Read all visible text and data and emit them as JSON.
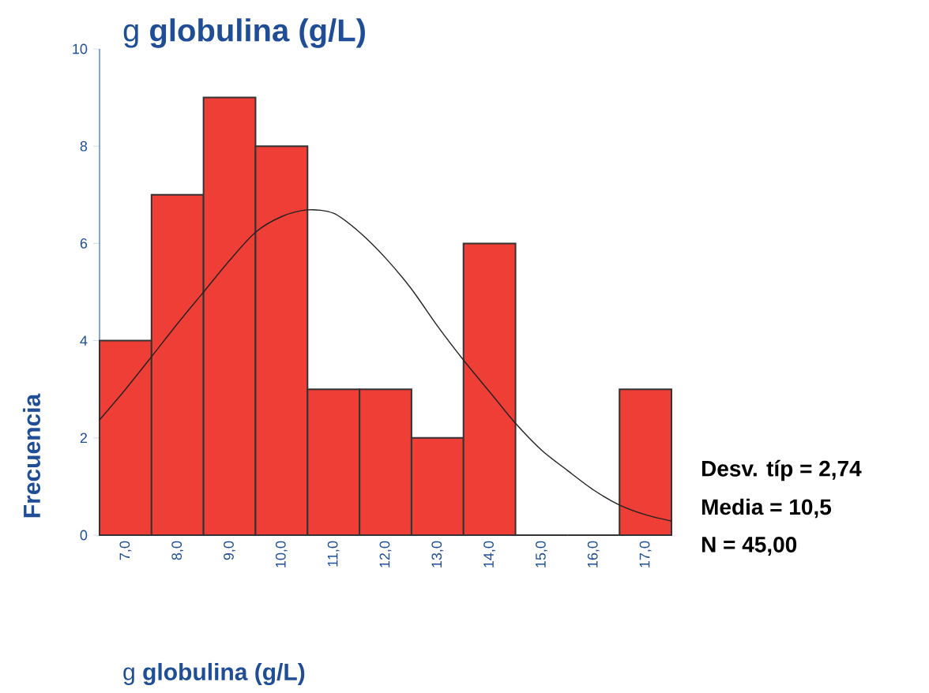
{
  "chart_data": {
    "type": "histogram",
    "title": "g **globulina (g/L)**",
    "xlabel": "g **globulina (g/L)**",
    "ylabel": "Frecuencia",
    "series": [
      {
        "color": "#ef3e36",
        "bins": [
          6.5,
          7.5,
          8.5,
          9.5,
          10.5,
          11.5,
          12.5,
          13.5,
          14.5,
          15.5,
          16.5,
          17.5
        ],
        "values": [
          4,
          7,
          9,
          8,
          3,
          3,
          2,
          6,
          0,
          0,
          3
        ]
      },
      {
        "type": "line",
        "color": "#222222",
        "x": [
          6.5,
          7,
          7.5,
          8,
          8.5,
          9,
          9.5,
          10,
          10.5,
          11,
          11.5,
          12,
          12.5,
          13,
          13.5,
          14,
          14.5,
          15,
          15.5,
          16,
          16.5,
          17,
          17.5
        ],
        "values": [
          2.37,
          3.0,
          3.67,
          4.35,
          5.0,
          5.65,
          6.23,
          6.55,
          6.69,
          6.62,
          6.23,
          5.7,
          5.06,
          4.3,
          3.6,
          2.95,
          2.3,
          1.75,
          1.33,
          0.93,
          0.62,
          0.42,
          0.29
        ]
      }
    ],
    "xlim": [
      6.5,
      17.5
    ],
    "ylim": [
      0,
      10
    ],
    "xticks": [
      {
        "value": 7,
        "label": "7,0"
      },
      {
        "value": 8,
        "label": "8,0"
      },
      {
        "value": 9,
        "label": "9,0"
      },
      {
        "value": 10,
        "label": "10,0"
      },
      {
        "value": 11,
        "label": "11,0"
      },
      {
        "value": 12,
        "label": "12,0"
      },
      {
        "value": 13,
        "label": "13,0"
      },
      {
        "value": 14,
        "label": "14,0"
      },
      {
        "value": 15,
        "label": "15,0"
      },
      {
        "value": 16,
        "label": "16,0"
      },
      {
        "value": 17,
        "label": "17,0"
      }
    ],
    "yticks": [
      0,
      2,
      4,
      6,
      8,
      10
    ],
    "annotations": [
      "Desv. típ = 2,74",
      "Media = 10,5",
      "N = 45,00"
    ]
  }
}
